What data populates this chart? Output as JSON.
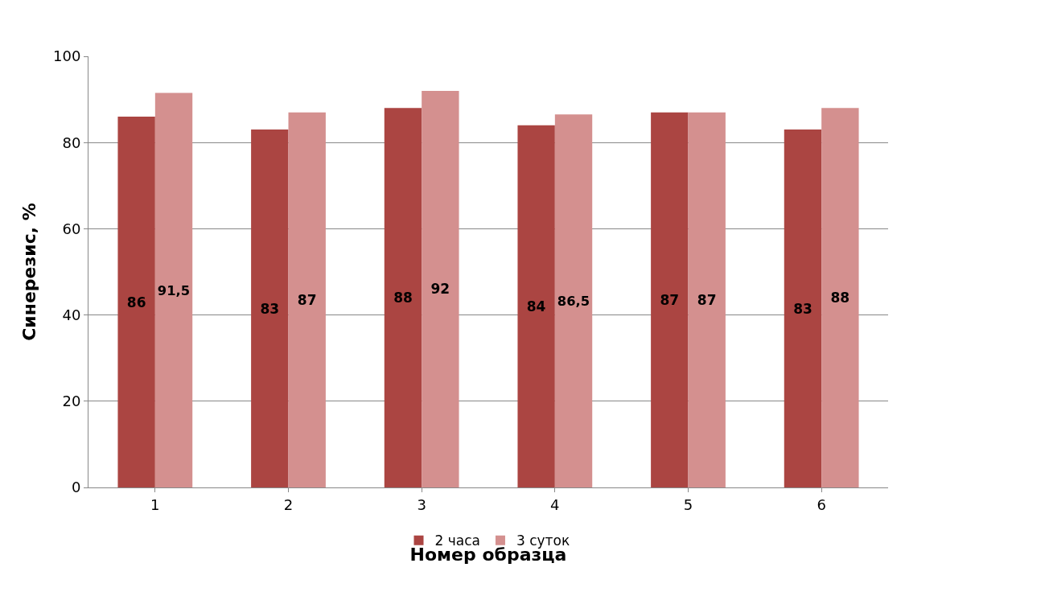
{
  "chart_data": {
    "type": "bar",
    "xlabel": "Номер образца",
    "ylabel": "Синерезис, %",
    "categories": [
      "1",
      "2",
      "3",
      "4",
      "5",
      "6"
    ],
    "series": [
      {
        "name": "2 часа",
        "color": "#ab4542",
        "values": [
          86,
          83,
          88,
          84,
          87,
          83
        ],
        "value_labels": [
          "86",
          "83",
          "88",
          "84",
          "87",
          "83"
        ]
      },
      {
        "name": "3 суток",
        "color": "#d4908f",
        "values": [
          91.5,
          87,
          92,
          86.5,
          87,
          88
        ],
        "value_labels": [
          "91,5",
          "87",
          "92",
          "86,5",
          "87",
          "88"
        ]
      }
    ],
    "ylim": [
      0,
      100
    ],
    "yticks": [
      0,
      20,
      40,
      60,
      80,
      100
    ],
    "grid": "y",
    "legend": "bottom"
  }
}
